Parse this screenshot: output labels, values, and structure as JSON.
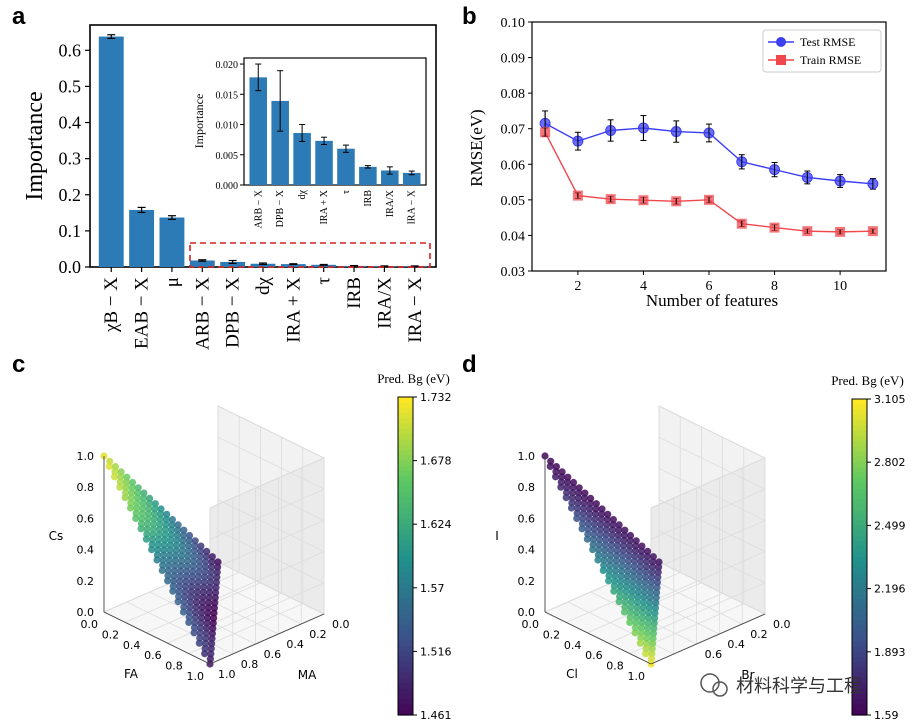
{
  "panels": {
    "a": "a",
    "b": "b",
    "c": "c",
    "d": "d"
  },
  "watermark": {
    "text": "材料科学与工程"
  },
  "chart_data": [
    {
      "id": "a",
      "type": "bar",
      "ylabel": "Importance",
      "ylim": [
        0,
        0.67
      ],
      "yticks": [
        "0.0",
        "0.1",
        "0.2",
        "0.3",
        "0.4",
        "0.5",
        "0.6"
      ],
      "categories": [
        "χB − X",
        "EAB − X",
        "μ",
        "ARB − X",
        "DPB − X",
        "dχ",
        "IRA + X",
        "τ",
        "IRB",
        "IRA/X",
        "IRA − X"
      ],
      "values": [
        0.638,
        0.158,
        0.137,
        0.018,
        0.014,
        0.009,
        0.008,
        0.006,
        0.003,
        0.002,
        0.002
      ],
      "errors": [
        0.005,
        0.007,
        0.005,
        0.002,
        0.004,
        0.002,
        0.001,
        0.001,
        0.001,
        0.001,
        0.001
      ],
      "inset": {
        "ylabel": "Importance",
        "ylim": [
          0,
          0.021
        ],
        "yticks": [
          "0.000",
          "0.005",
          "0.010",
          "0.015",
          "0.020"
        ],
        "categories": [
          "ARB − X",
          "DPB − X",
          "dχ",
          "IRA + X",
          "τ",
          "IRB",
          "IRA/X",
          "IRA − X"
        ],
        "values": [
          0.0178,
          0.0139,
          0.0086,
          0.0073,
          0.006,
          0.003,
          0.0024,
          0.002
        ],
        "errors": [
          0.0022,
          0.005,
          0.0014,
          0.0006,
          0.0006,
          0.0002,
          0.0006,
          0.0003
        ]
      }
    },
    {
      "id": "b",
      "type": "line",
      "xlabel": "Number of features",
      "ylabel": "RMSE(eV)",
      "xlim": [
        0.6,
        11.4
      ],
      "ylim": [
        0.03,
        0.1
      ],
      "xticks": [
        "2",
        "4",
        "6",
        "8",
        "10"
      ],
      "yticks": [
        "0.03",
        "0.04",
        "0.05",
        "0.06",
        "0.07",
        "0.08",
        "0.09",
        "0.10"
      ],
      "x": [
        1,
        2,
        3,
        4,
        5,
        6,
        7,
        8,
        9,
        10,
        11
      ],
      "legend_position": "top-right",
      "series": [
        {
          "name": "Test RMSE",
          "color": "#3b3ff2",
          "marker": "circle",
          "values": [
            0.0715,
            0.0665,
            0.0695,
            0.0702,
            0.0692,
            0.0688,
            0.0607,
            0.0585,
            0.0563,
            0.0553,
            0.0545
          ],
          "errors": [
            0.0035,
            0.0025,
            0.003,
            0.0035,
            0.003,
            0.0025,
            0.002,
            0.002,
            0.0018,
            0.0018,
            0.0015
          ]
        },
        {
          "name": "Train RMSE",
          "color": "#f0474d",
          "marker": "square",
          "values": [
            0.069,
            0.0512,
            0.0502,
            0.0499,
            0.0496,
            0.05,
            0.0433,
            0.0422,
            0.0412,
            0.041,
            0.0412
          ],
          "errors": [
            0.0012,
            0.0008,
            0.0008,
            0.0008,
            0.0008,
            0.0008,
            0.0008,
            0.0008,
            0.0006,
            0.0006,
            0.0006
          ]
        }
      ]
    },
    {
      "id": "c",
      "type": "scatter",
      "colorbar_label": "Pred. Bg (eV)",
      "colorbar_ticks": [
        "1.732",
        "1.678",
        "1.624",
        "1.57",
        "1.516",
        "1.461"
      ],
      "range": [
        1.461,
        1.732
      ],
      "axes": {
        "x": "FA",
        "y": "MA",
        "z": "Cs"
      },
      "x_ticks": [
        "0.0",
        "0.2",
        "0.4",
        "0.6",
        "0.8",
        "1.0"
      ],
      "y_ticks": [
        "0.0",
        "0.2",
        "0.4",
        "0.6",
        "0.8",
        "1.0"
      ],
      "z_ticks": [
        "0.0",
        "0.2",
        "0.4",
        "0.6",
        "0.8",
        "1.0"
      ],
      "grid_n": 20
    },
    {
      "id": "d",
      "type": "scatter",
      "colorbar_label": "Pred. Bg (eV)",
      "colorbar_ticks": [
        "3.105",
        "2.802",
        "2.499",
        "2.196",
        "1.893",
        "1.59"
      ],
      "range": [
        1.59,
        3.105
      ],
      "axes": {
        "x": "Cl",
        "y": "Br",
        "z": "I"
      },
      "x_ticks": [
        "0.0",
        "0.2",
        "0.4",
        "0.6",
        "0.8",
        "1.0"
      ],
      "y_ticks": [
        "0.0",
        "0.2",
        "0.4",
        "0.6"
      ],
      "z_ticks": [
        "0.0",
        "0.2",
        "0.4",
        "0.6",
        "0.8",
        "1.0"
      ],
      "grid_n": 20
    }
  ]
}
